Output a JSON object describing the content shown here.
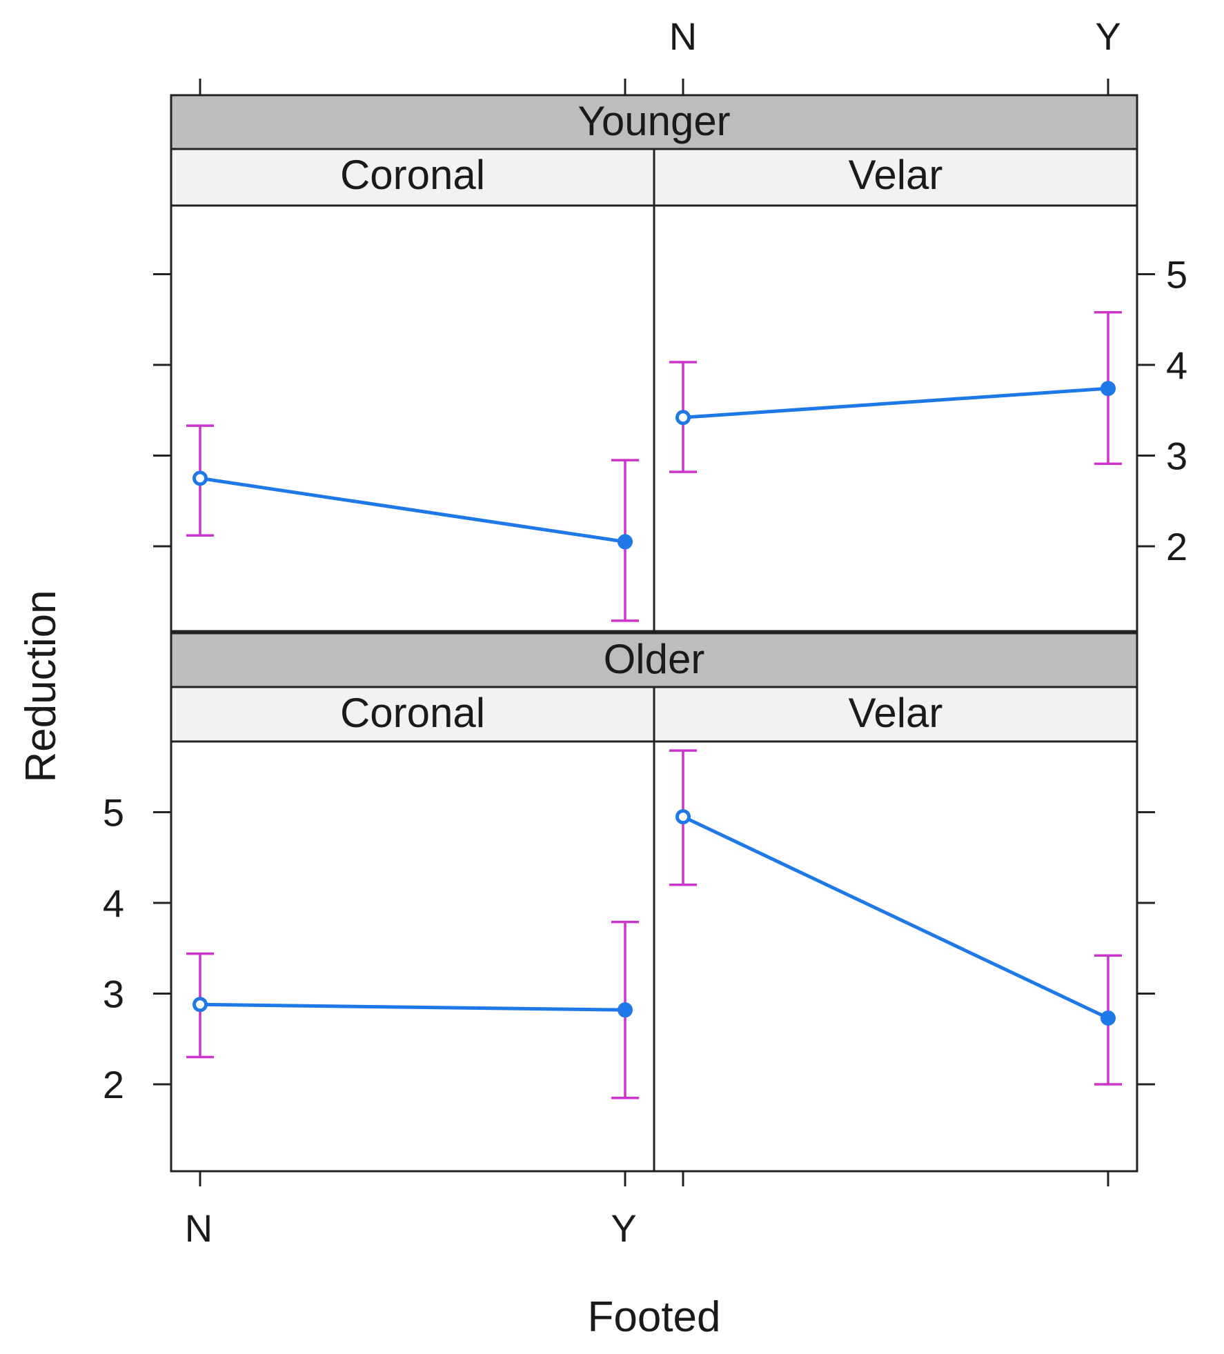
{
  "chart_data": {
    "type": "line",
    "subtype": "effects-plot-with-error-bars",
    "xlabel": "Footed",
    "ylabel": "Reduction",
    "categories": [
      "N",
      "Y"
    ],
    "y_ticks": [
      2,
      3,
      4,
      5
    ],
    "y_tick_labels": [
      "2",
      "3",
      "4",
      "5"
    ],
    "ylim": [
      1.05,
      5.8
    ],
    "colors": {
      "line": "#1f78e8",
      "error_bar": "#cc33cc",
      "strip_outer": "#bdbdbd",
      "strip_inner": "#f2f2f2"
    },
    "panels": [
      {
        "group": "Younger",
        "place": "Coronal",
        "series": [
          {
            "x": "N",
            "y": 2.75,
            "lower": 2.12,
            "upper": 3.33
          },
          {
            "x": "Y",
            "y": 2.05,
            "lower": 1.18,
            "upper": 2.95
          }
        ]
      },
      {
        "group": "Younger",
        "place": "Velar",
        "series": [
          {
            "x": "N",
            "y": 3.42,
            "lower": 2.82,
            "upper": 4.03
          },
          {
            "x": "Y",
            "y": 3.74,
            "lower": 2.91,
            "upper": 4.58
          }
        ]
      },
      {
        "group": "Older",
        "place": "Coronal",
        "series": [
          {
            "x": "N",
            "y": 2.88,
            "lower": 2.3,
            "upper": 3.44
          },
          {
            "x": "Y",
            "y": 2.82,
            "lower": 1.85,
            "upper": 3.79
          }
        ]
      },
      {
        "group": "Older",
        "place": "Velar",
        "series": [
          {
            "x": "N",
            "y": 4.95,
            "lower": 4.2,
            "upper": 5.68
          },
          {
            "x": "Y",
            "y": 2.73,
            "lower": 2.0,
            "upper": 3.42
          }
        ]
      }
    ]
  }
}
